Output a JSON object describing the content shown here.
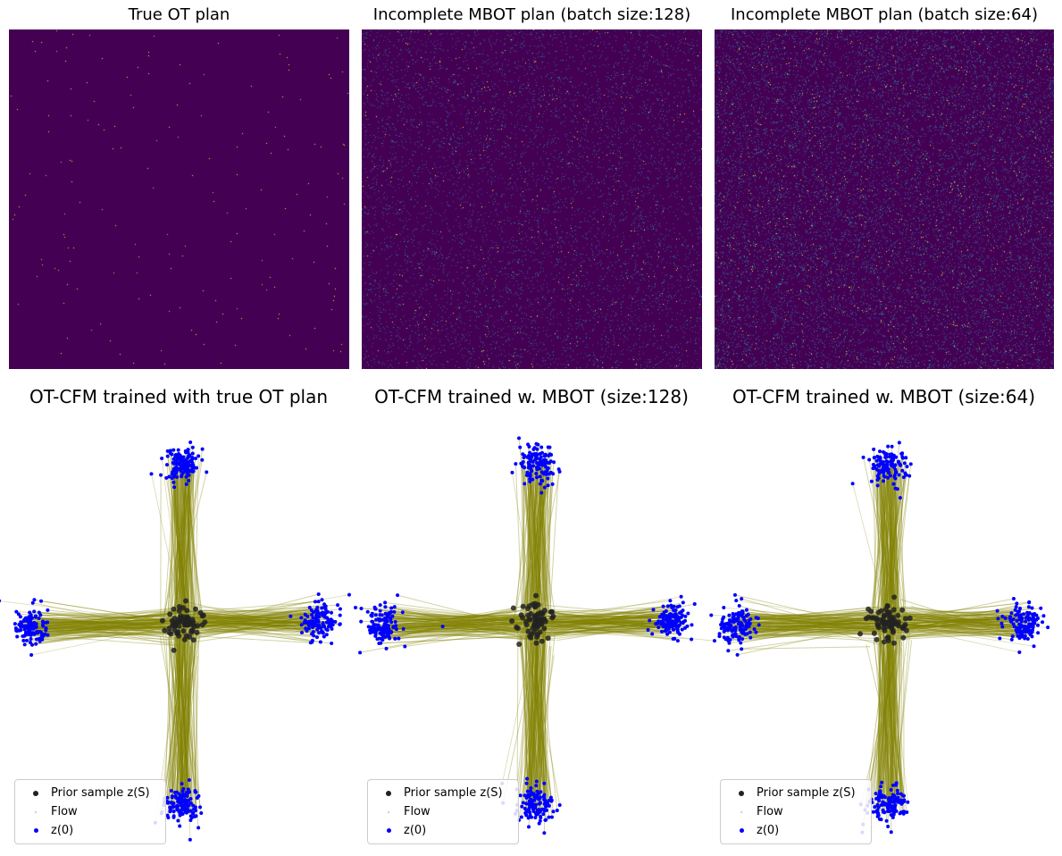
{
  "figure": {
    "heatmaps": [
      {
        "title": "True OT plan",
        "density": 0.0012
      },
      {
        "title": "Incomplete MBOT plan (batch size:128)",
        "density": 0.045
      },
      {
        "title": "Incomplete MBOT plan (batch size:64)",
        "density": 0.09
      }
    ],
    "flows": [
      {
        "title": "OT-CFM trained with true OT plan",
        "spread": 0.35
      },
      {
        "title": "OT-CFM trained w. MBOT (size:128)",
        "spread": 0.55
      },
      {
        "title": "OT-CFM trained w. MBOT (size:64)",
        "spread": 0.75
      }
    ],
    "legend": {
      "prior": "Prior sample z(S)",
      "flow": "Flow",
      "z0": "z(0)"
    },
    "colors": {
      "heat_bg": "#440154",
      "heat_mid": "#21918c",
      "heat_hi": "#fde725",
      "prior": "#222222",
      "flow": "#808000",
      "z0": "#0000ff"
    }
  },
  "chart_data": [
    {
      "type": "heatmap",
      "title": "True OT plan",
      "colormap": "viridis",
      "axis": "off",
      "description_values": "permutation-like sparse transport plan"
    },
    {
      "type": "heatmap",
      "title": "Incomplete MBOT plan (batch size:128)",
      "colormap": "viridis",
      "axis": "off"
    },
    {
      "type": "heatmap",
      "title": "Incomplete MBOT plan (batch size:64)",
      "colormap": "viridis",
      "axis": "off"
    },
    {
      "type": "scatter",
      "title": "OT-CFM trained with true OT plan",
      "axis": "off",
      "series": [
        {
          "name": "Prior sample z(S)"
        },
        {
          "name": "Flow"
        },
        {
          "name": "z(0)"
        }
      ],
      "clusters": {
        "source_center": [
          0,
          0
        ],
        "targets": [
          [
            0,
            5
          ],
          [
            -4.5,
            0
          ],
          [
            4.5,
            0
          ],
          [
            0,
            -5
          ]
        ]
      }
    },
    {
      "type": "scatter",
      "title": "OT-CFM trained w. MBOT (size:128)",
      "axis": "off",
      "series": [
        {
          "name": "Prior sample z(S)"
        },
        {
          "name": "Flow"
        },
        {
          "name": "z(0)"
        }
      ],
      "clusters": {
        "source_center": [
          0,
          0
        ],
        "targets": [
          [
            0,
            5
          ],
          [
            -4.5,
            0
          ],
          [
            4.5,
            0
          ],
          [
            0,
            -5
          ]
        ]
      }
    },
    {
      "type": "scatter",
      "title": "OT-CFM trained w. MBOT (size:64)",
      "axis": "off",
      "series": [
        {
          "name": "Prior sample z(S)"
        },
        {
          "name": "Flow"
        },
        {
          "name": "z(0)"
        }
      ],
      "clusters": {
        "source_center": [
          0,
          0
        ],
        "targets": [
          [
            0,
            5
          ],
          [
            -4.5,
            0
          ],
          [
            4.5,
            0
          ],
          [
            0,
            -5
          ]
        ]
      }
    }
  ]
}
